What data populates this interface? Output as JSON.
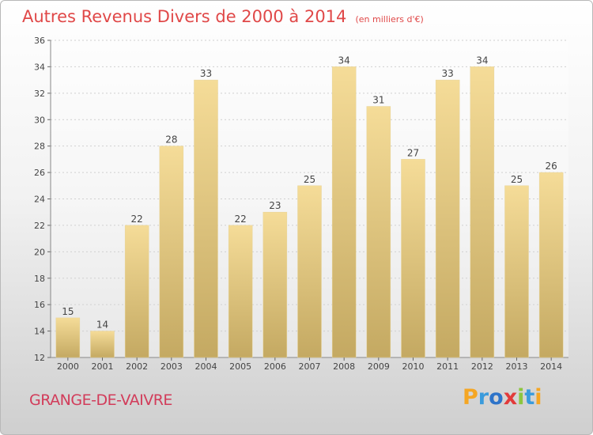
{
  "title": "Autres Revenus Divers de 2000 à 2014",
  "unit_note": "(en milliers d'€)",
  "place_name": "GRANGE-DE-VAIVRE",
  "logo": {
    "letters": [
      {
        "ch": "P",
        "color": "#f5a623"
      },
      {
        "ch": "r",
        "color": "#3a9bdc"
      },
      {
        "ch": "o",
        "color": "#2e74c9"
      },
      {
        "ch": "x",
        "color": "#e23a3a"
      },
      {
        "ch": "i",
        "color": "#8cc63f"
      },
      {
        "ch": "t",
        "color": "#3a9bdc"
      },
      {
        "ch": "i",
        "color": "#f5a623"
      }
    ]
  },
  "chart_data": {
    "type": "bar",
    "categories": [
      "2000",
      "2001",
      "2002",
      "2003",
      "2004",
      "2005",
      "2006",
      "2007",
      "2008",
      "2009",
      "2010",
      "2011",
      "2012",
      "2013",
      "2014"
    ],
    "values": [
      15,
      14,
      22,
      28,
      33,
      22,
      23,
      25,
      34,
      31,
      27,
      33,
      34,
      25,
      26
    ],
    "ylim": [
      12,
      36
    ],
    "yticks": [
      12,
      14,
      16,
      18,
      20,
      22,
      24,
      26,
      28,
      30,
      32,
      34,
      36
    ],
    "grid": true,
    "bar_color_top": "#f5dc98",
    "bar_color_bottom": "#c4a962",
    "legend": "none"
  }
}
